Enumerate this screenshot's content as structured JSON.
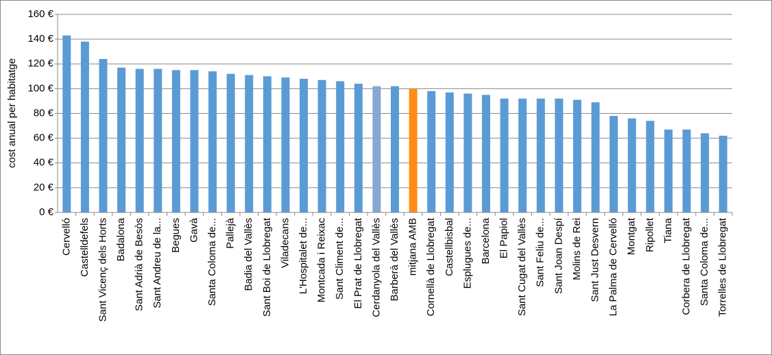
{
  "chart_data": {
    "type": "bar",
    "y_label": "cost anual per habitatge",
    "categories": [
      "Cervelló",
      "Castelldefels",
      "Sant Vicenç dels Horts",
      "Badalona",
      "Sant Adrià de Besòs",
      "Sant Andreu de la...",
      "Begues",
      "Gavà",
      "Santa Coloma de...",
      "Pallejà",
      "Badia del Vallès",
      "Sant Boi de Llobregat",
      "Viladecans",
      "L'Hospitalet de...",
      "Montcada i Reixac",
      "Sant Climent de...",
      "El Prat de Llobregat",
      "Cerdanyola del Vallès",
      "Barberà del Vallès",
      "mitjana AMB",
      "Cornellà de Llobregat",
      "Castellbisbal",
      "Esplugues de...",
      "Barcelona",
      "El Papiol",
      "Sant Cugat del Vallès",
      "Sant Feliu de...",
      "Sant Joan Despí",
      "Molins de Rei",
      "Sant Just Desvern",
      "La Palma de Cervelló",
      "Montgat",
      "Ripollet",
      "Tiana",
      "Corbera de Llobregat",
      "Santa Coloma de...",
      "Torrelles de Llobregat"
    ],
    "values": [
      143,
      138,
      124,
      117,
      116,
      116,
      115,
      115,
      114,
      112,
      111,
      110,
      109,
      108,
      107,
      106,
      104,
      102,
      102,
      100,
      98,
      97,
      96,
      95,
      92,
      92,
      92,
      92,
      91,
      89,
      78,
      76,
      74,
      67,
      67,
      64,
      62
    ],
    "colors": [
      "#5b9bd5",
      "#5b9bd5",
      "#5b9bd5",
      "#5b9bd5",
      "#5b9bd5",
      "#5b9bd5",
      "#5b9bd5",
      "#5b9bd5",
      "#5b9bd5",
      "#5b9bd5",
      "#5b9bd5",
      "#5b9bd5",
      "#5b9bd5",
      "#5b9bd5",
      "#5b9bd5",
      "#5b9bd5",
      "#5b9bd5",
      "#86a9d2",
      "#5b9bd5",
      "#ff8c1a",
      "#5b9bd5",
      "#5b9bd5",
      "#5b9bd5",
      "#5b9bd5",
      "#5b9bd5",
      "#5b9bd5",
      "#5b9bd5",
      "#5b9bd5",
      "#5b9bd5",
      "#5b9bd5",
      "#5b9bd5",
      "#5b9bd5",
      "#5b9bd5",
      "#5b9bd5",
      "#5b9bd5",
      "#5b9bd5",
      "#5b9bd5"
    ],
    "ylim": [
      0,
      160
    ],
    "yticks": [
      {
        "value": 0,
        "label": "0 €"
      },
      {
        "value": 20,
        "label": "20 €"
      },
      {
        "value": 40,
        "label": "40 €"
      },
      {
        "value": 60,
        "label": "60 €"
      },
      {
        "value": 80,
        "label": "80 €"
      },
      {
        "value": 100,
        "label": "100 €"
      },
      {
        "value": 120,
        "label": "120 €"
      },
      {
        "value": 140,
        "label": "140 €"
      },
      {
        "value": 160,
        "label": "160 €"
      }
    ],
    "grid": true
  }
}
